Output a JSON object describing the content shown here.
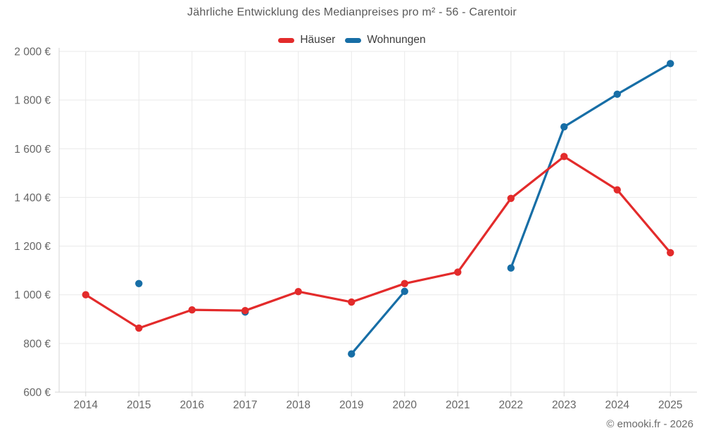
{
  "title": "Jährliche Entwicklung des Medianpreises pro m² - 56 - Carentoir",
  "footer": "© emooki.fr - 2026",
  "legend": {
    "items": [
      {
        "label": "Häuser"
      },
      {
        "label": "Wohnungen"
      }
    ]
  },
  "colors": {
    "haeuser_red": "#e32b2b",
    "wohnungen_blue": "#176ea6",
    "grid": "#e9e9e9",
    "axis": "#d5d5d5",
    "tick_text": "#666666"
  },
  "chart_data": {
    "type": "line",
    "title": "Jährliche Entwicklung des Medianpreises pro m² - 56 - Carentoir",
    "categories": [
      "2014",
      "2015",
      "2016",
      "2017",
      "2018",
      "2019",
      "2020",
      "2021",
      "2022",
      "2023",
      "2024",
      "2025"
    ],
    "series": [
      {
        "name": "Häuser",
        "color": "#e32b2b",
        "values": [
          1000,
          863,
          938,
          935,
          1013,
          970,
          1046,
          1093,
          1396,
          1568,
          1431,
          1173
        ]
      },
      {
        "name": "Wohnungen",
        "color": "#176ea6",
        "values": [
          null,
          1046,
          null,
          929,
          null,
          757,
          1014,
          null,
          1110,
          1690,
          1824,
          1950
        ]
      }
    ],
    "xlabel": "",
    "ylabel": "",
    "ylim": [
      600,
      2000
    ],
    "yticks": [
      {
        "value": 600,
        "label": "600 €"
      },
      {
        "value": 800,
        "label": "800 €"
      },
      {
        "value": 1000,
        "label": "1 000 €"
      },
      {
        "value": 1200,
        "label": "1 200 €"
      },
      {
        "value": 1400,
        "label": "1 400 €"
      },
      {
        "value": 1600,
        "label": "1 600 €"
      },
      {
        "value": 1800,
        "label": "1 800 €"
      },
      {
        "value": 2000,
        "label": "2 000 €"
      }
    ],
    "grid": true,
    "legend_position": "top",
    "marker": "circle",
    "note": "Wohnungen has isolated points in 2015 and 2017 (2017 point hidden behind Häuser point); line segments only 2019-2020 and 2022-2025"
  }
}
